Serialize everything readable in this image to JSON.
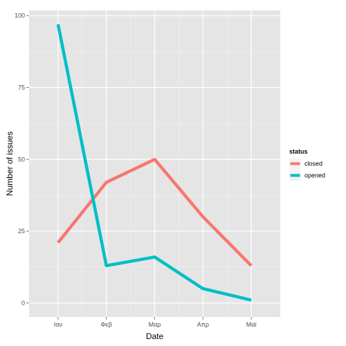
{
  "chart_data": {
    "type": "line",
    "categories": [
      "Ιαν",
      "Φεβ",
      "Μαρ",
      "Απρ",
      "Μαϊ"
    ],
    "xlabel": "Date",
    "ylabel": "Number of issues",
    "ylim": [
      0,
      100
    ],
    "yticks": [
      "0",
      "25",
      "50",
      "75",
      "100"
    ],
    "grid": true,
    "legend": {
      "title": "status",
      "placement": "right"
    },
    "series": [
      {
        "name": "closed",
        "color": "#F8766D",
        "values": [
          21,
          42,
          50,
          30,
          13
        ]
      },
      {
        "name": "opened",
        "color": "#00BFC4",
        "values": [
          97,
          13,
          16,
          5,
          1
        ]
      }
    ]
  }
}
